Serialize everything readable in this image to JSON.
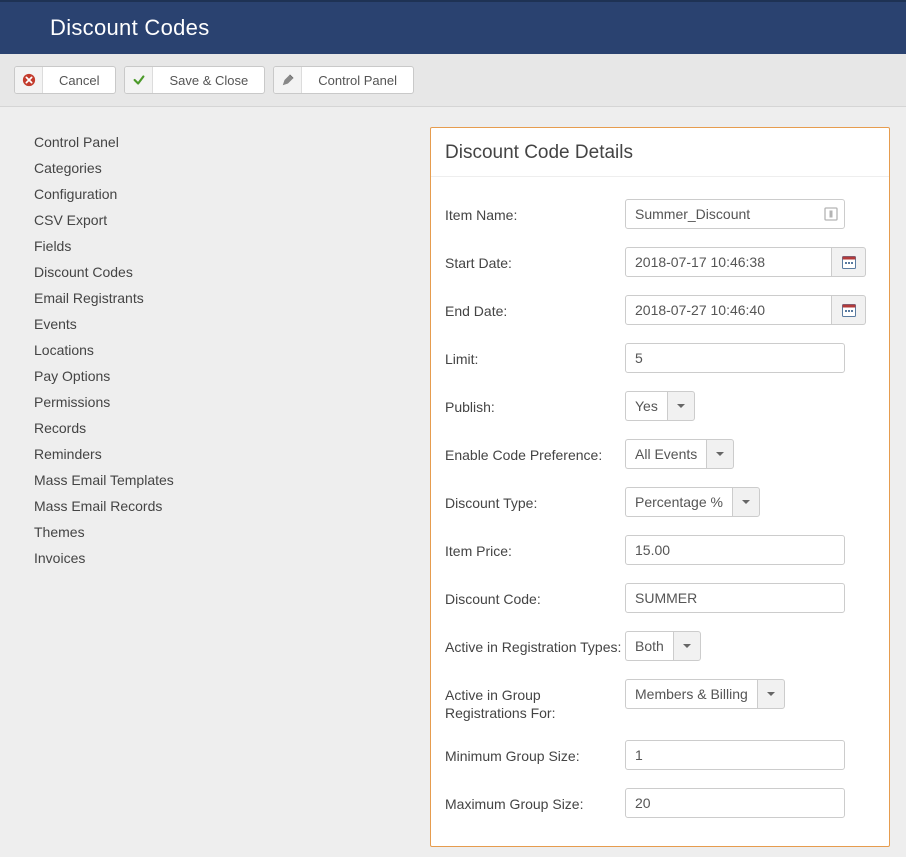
{
  "header": {
    "title": "Discount Codes"
  },
  "toolbar": {
    "cancel_label": "Cancel",
    "save_label": "Save & Close",
    "cpanel_label": "Control Panel"
  },
  "colors": {
    "header_bg": "#2a4270",
    "panel_border": "#e69c4e",
    "body_bg": "#eeeeee",
    "cancel_icon": "#c33b2c",
    "save_icon": "#4c9a2a",
    "pencil_icon": "#888888"
  },
  "sidebar": {
    "items": [
      {
        "label": "Control Panel"
      },
      {
        "label": "Categories"
      },
      {
        "label": "Configuration"
      },
      {
        "label": "CSV Export"
      },
      {
        "label": "Fields"
      },
      {
        "label": "Discount Codes"
      },
      {
        "label": "Email Registrants"
      },
      {
        "label": "Events"
      },
      {
        "label": "Locations"
      },
      {
        "label": "Pay Options"
      },
      {
        "label": "Permissions"
      },
      {
        "label": "Records"
      },
      {
        "label": "Reminders"
      },
      {
        "label": "Mass Email Templates"
      },
      {
        "label": "Mass Email Records"
      },
      {
        "label": "Themes"
      },
      {
        "label": "Invoices"
      }
    ]
  },
  "panel": {
    "title": "Discount Code Details"
  },
  "form": {
    "item_name": {
      "label": "Item Name:",
      "value": "Summer_Discount"
    },
    "start_date": {
      "label": "Start Date:",
      "value": "2018-07-17 10:46:38"
    },
    "end_date": {
      "label": "End Date:",
      "value": "2018-07-27 10:46:40"
    },
    "limit": {
      "label": "Limit:",
      "value": "5"
    },
    "publish": {
      "label": "Publish:",
      "value": "Yes"
    },
    "enable_pref": {
      "label": "Enable Code Preference:",
      "value": "All Events"
    },
    "discount_type": {
      "label": "Discount Type:",
      "value": "Percentage %"
    },
    "item_price": {
      "label": "Item Price:",
      "value": "15.00"
    },
    "discount_code": {
      "label": "Discount Code:",
      "value": "SUMMER"
    },
    "active_reg_types": {
      "label": "Active in Registration Types:",
      "value": "Both"
    },
    "active_group_reg": {
      "label": "Active in Group Registrations For:",
      "value": "Members & Billing"
    },
    "min_group": {
      "label": "Minimum Group Size:",
      "value": "1"
    },
    "max_group": {
      "label": "Maximum Group Size:",
      "value": "20"
    }
  }
}
